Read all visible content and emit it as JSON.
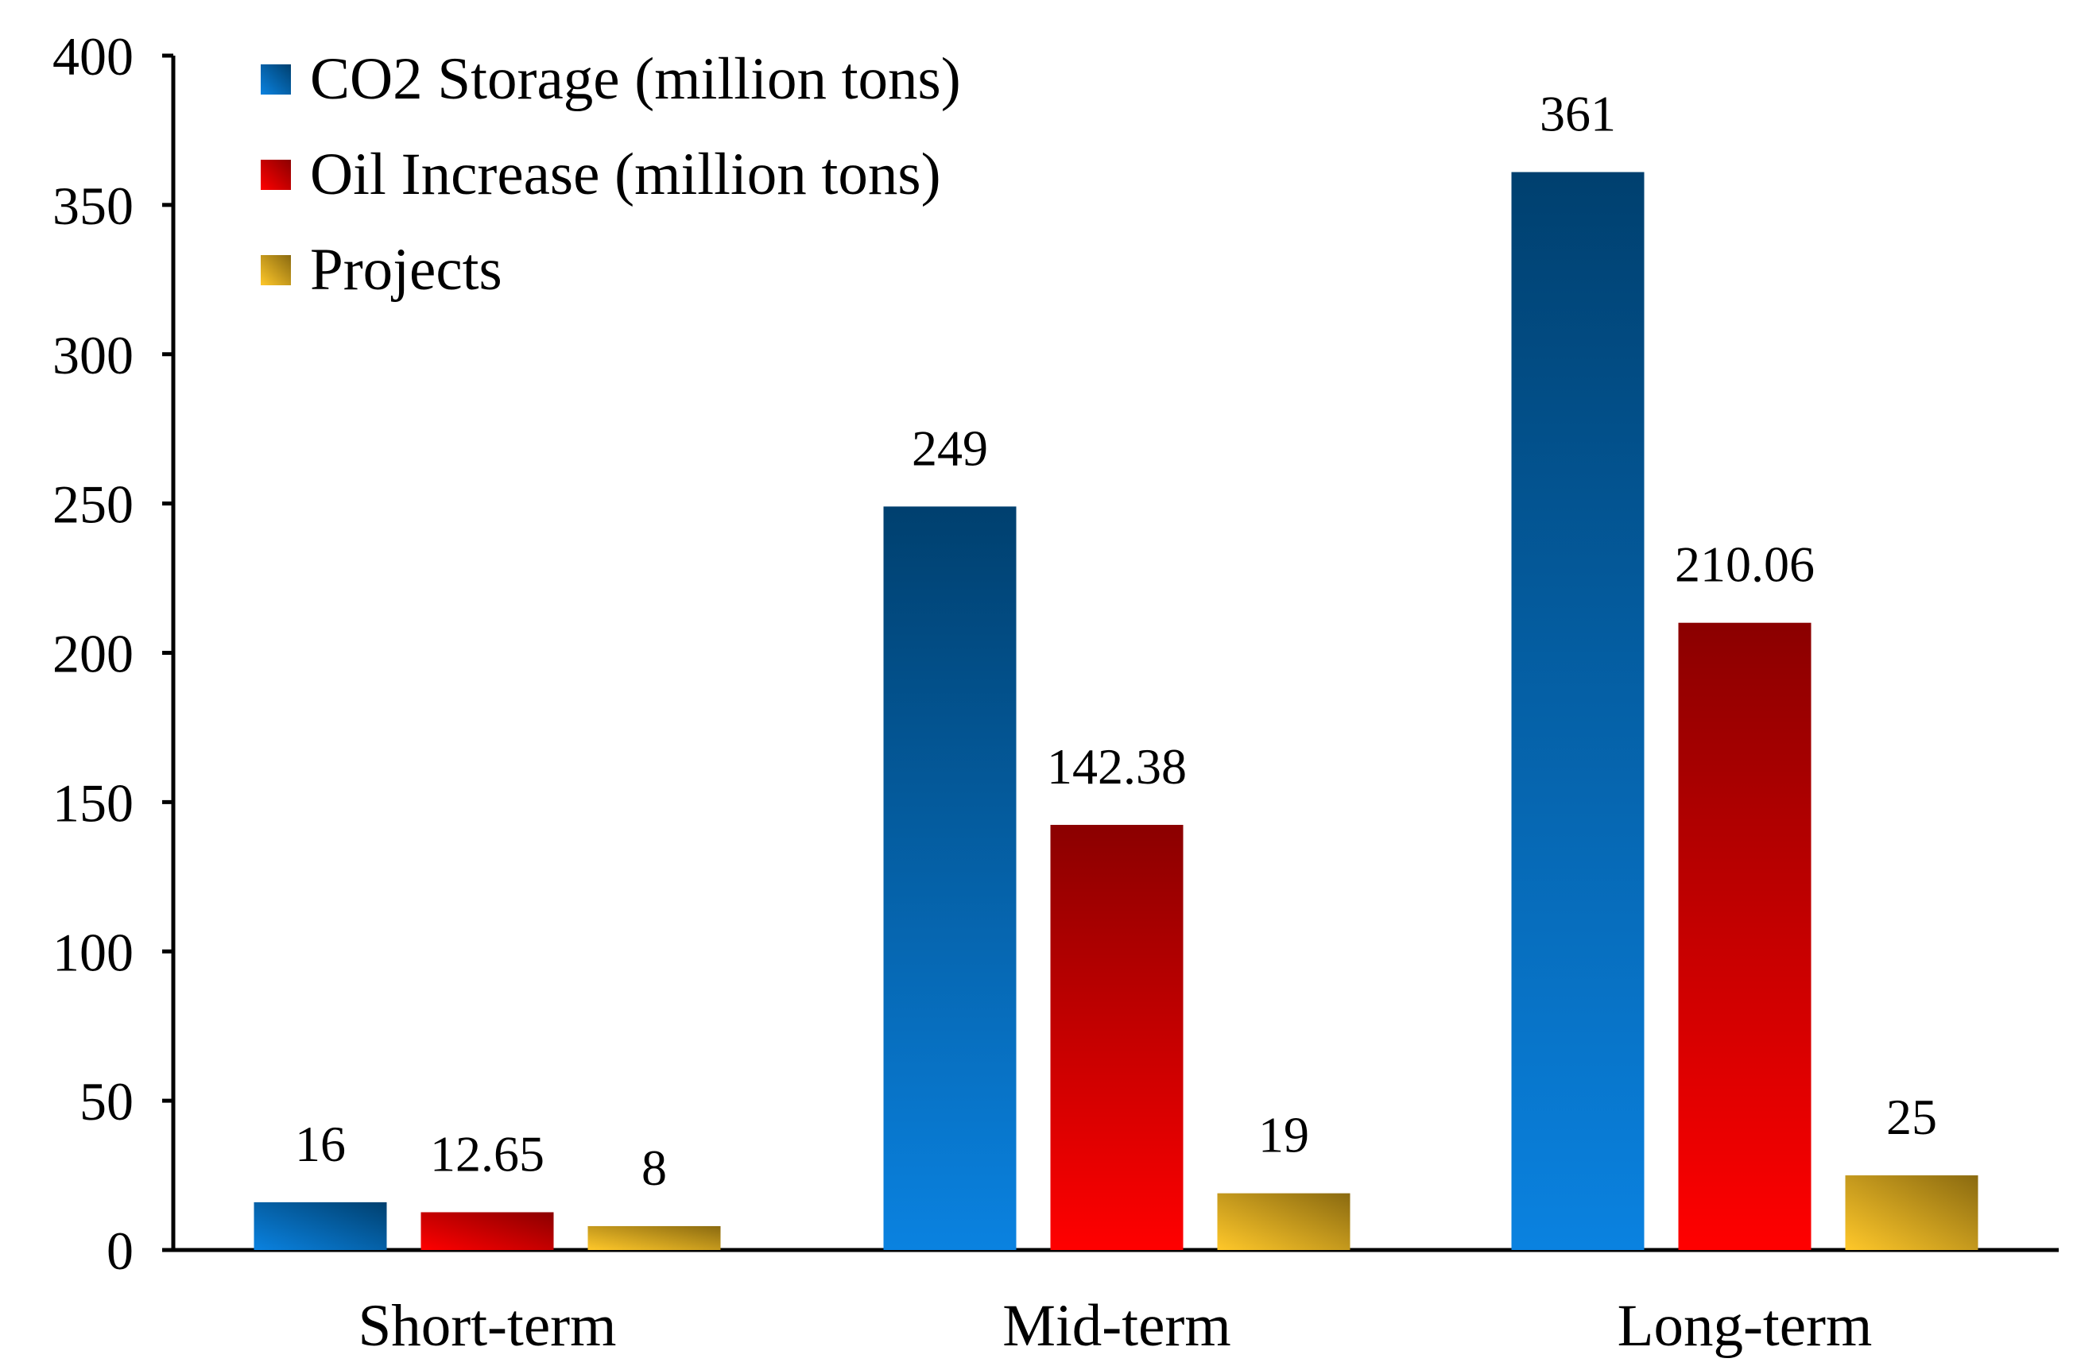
{
  "chart_data": {
    "type": "bar",
    "title": "",
    "xlabel": "",
    "ylabel": "",
    "categories": [
      "Short-term",
      "Mid-term",
      "Long-term"
    ],
    "series": [
      {
        "name": "CO2 Storage (million tons)",
        "values": [
          16,
          249,
          361
        ],
        "labels": [
          "16",
          "249",
          "361"
        ],
        "color_light": "#0a82e0",
        "color_dark": "#00406f"
      },
      {
        "name": "Oil Increase (million tons)",
        "values": [
          12.65,
          142.38,
          210.06
        ],
        "labels": [
          "12.65",
          "142.38",
          "210.06"
        ],
        "color_light": "#ff0000",
        "color_dark": "#8b0000"
      },
      {
        "name": "Projects",
        "values": [
          8,
          19,
          25
        ],
        "labels": [
          "8",
          "19",
          "25"
        ],
        "color_light": "#ffc82a",
        "color_dark": "#8a6a10"
      }
    ],
    "ylim": [
      0,
      400
    ],
    "yticks": [
      0,
      50,
      100,
      150,
      200,
      250,
      300,
      350,
      400
    ],
    "grid": false,
    "legend_position": "top-left"
  }
}
